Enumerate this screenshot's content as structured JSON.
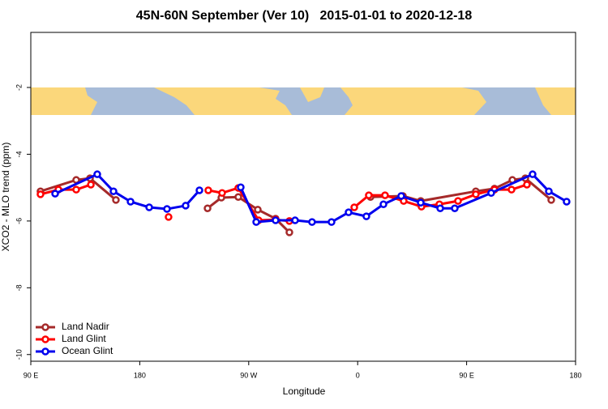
{
  "chart_data": {
    "type": "line",
    "title": "45N-60N September (Ver 10)   2015-01-01 to 2020-12-18",
    "x_label": "Longitude",
    "y_label": "XCO2 - MLO trend (ppm)",
    "xlim": [
      90,
      540
    ],
    "xticks": [
      {
        "value": 90,
        "label": "90 E"
      },
      {
        "value": 180,
        "label": "180"
      },
      {
        "value": 270,
        "label": "90 W"
      },
      {
        "value": 360,
        "label": "0"
      },
      {
        "value": 450,
        "label": "90 E"
      },
      {
        "value": 540,
        "label": "180"
      }
    ],
    "ylim": [
      -10.2,
      -0.35
    ],
    "yticks": [
      -2,
      -4,
      -6,
      -8,
      -10
    ],
    "grid": false,
    "legend": "bottom-left",
    "series": [
      {
        "name": "Land Nadir",
        "color": "#a52a2a",
        "x": [
          98.0,
          127.5,
          138.9,
          160.3,
          null,
          236.0,
          247.4,
          261.4,
          277.5,
          292.2,
          303.6,
          null,
          370.6,
          397.4,
          412.1,
          457.6,
          473.0,
          487.8,
          498.5,
          519.9
        ],
        "values": [
          -5.11,
          -4.77,
          -4.72,
          -5.37,
          null,
          -5.62,
          -5.3,
          -5.28,
          -5.66,
          -5.93,
          -6.34,
          null,
          -5.28,
          -5.25,
          -5.4,
          -5.11,
          -5.03,
          -4.77,
          -4.72,
          -5.37
        ]
      },
      {
        "name": "Land Glint",
        "color": "#ff0000",
        "x": [
          98.0,
          112.8,
          127.5,
          139.6,
          null,
          203.8,
          null,
          236.6,
          248.0,
          261.4,
          278.2,
          292.2,
          303.6,
          null,
          357.2,
          369.2,
          382.6,
          398.0,
          412.7,
          427.5,
          442.9,
          457.6,
          473.0,
          487.1,
          499.8
        ],
        "values": [
          -5.2,
          -5.06,
          -5.06,
          -4.91,
          null,
          -5.88,
          null,
          -5.08,
          -5.16,
          -5.01,
          -5.98,
          -5.96,
          -6.0,
          null,
          -5.59,
          -5.23,
          -5.23,
          -5.4,
          -5.57,
          -5.5,
          -5.4,
          -5.2,
          -5.06,
          -5.06,
          -4.91
        ]
      },
      {
        "name": "Ocean Glint",
        "color": "#0000ee",
        "x": [
          110.1,
          144.9,
          158.3,
          172.4,
          187.8,
          202.5,
          217.9,
          229.3,
          null,
          263.4,
          276.2,
          292.2,
          308.3,
          322.3,
          338.4,
          352.5,
          367.2,
          381.3,
          396.0,
          412.1,
          428.2,
          440.2,
          470.3,
          504.5,
          517.9,
          532.6
        ],
        "values": [
          -5.18,
          -4.6,
          -5.11,
          -5.42,
          -5.59,
          -5.64,
          -5.54,
          -5.08,
          null,
          -4.99,
          -6.03,
          -5.98,
          -5.98,
          -6.03,
          -6.03,
          -5.74,
          -5.86,
          -5.5,
          -5.25,
          -5.45,
          -5.62,
          -5.62,
          -5.16,
          -4.6,
          -5.11,
          -5.42
        ]
      }
    ]
  }
}
